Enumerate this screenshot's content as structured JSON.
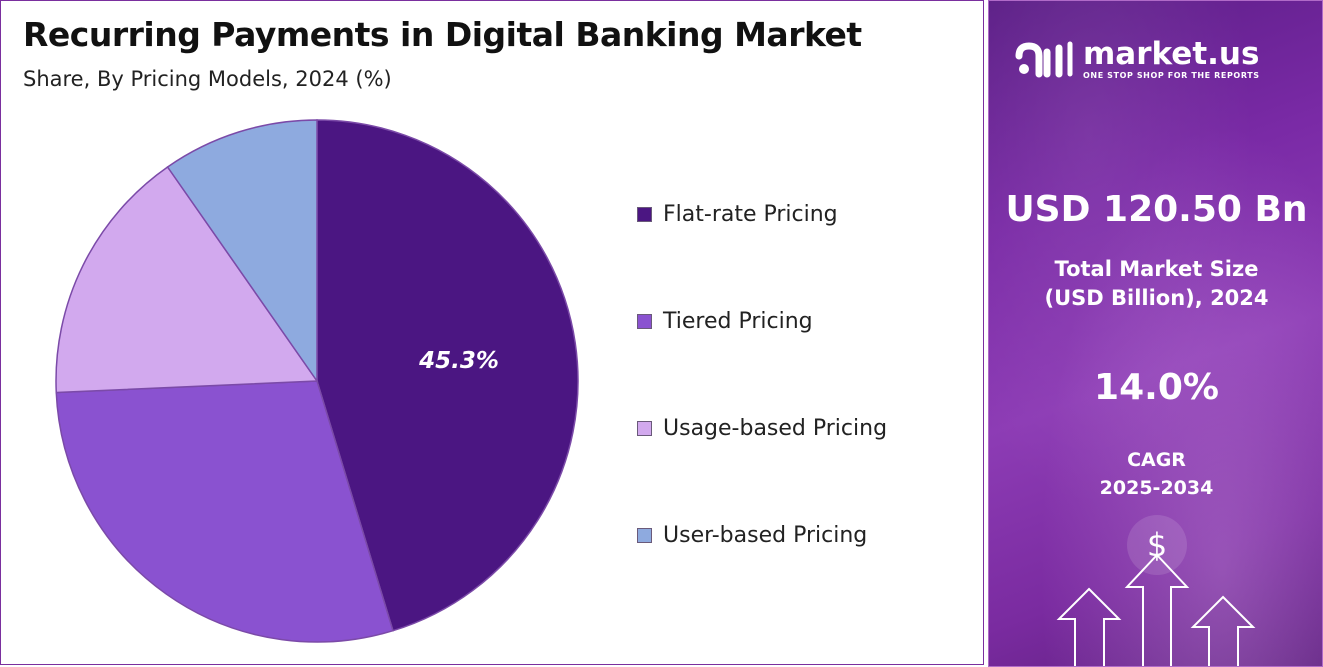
{
  "chart": {
    "title": "Recurring Payments in Digital Banking Market",
    "subtitle": "Share, By Pricing Models, 2024 (%)"
  },
  "chart_data": {
    "type": "pie",
    "categories": [
      "Flat-rate Pricing",
      "Tiered Pricing",
      "Usage-based Pricing",
      "User-based Pricing"
    ],
    "values": [
      45.3,
      29.0,
      16.0,
      9.7
    ],
    "colors": [
      "#4b1682",
      "#8a52d0",
      "#d2a9ee",
      "#8eaadf"
    ],
    "data_labels": [
      "45.3%",
      "",
      "",
      ""
    ],
    "start_angle_deg": 0,
    "direction": "clockwise",
    "legend_position": "right"
  },
  "sidebar": {
    "brand_name": "market.us",
    "brand_tagline": "ONE STOP SHOP FOR THE REPORTS",
    "market_value": "USD 120.50 Bn",
    "market_label_line1": "Total Market Size",
    "market_label_line2": "(USD Billion), 2024",
    "cagr_value": "14.0%",
    "cagr_label_line1": "CAGR",
    "cagr_label_line2": "2025-2034",
    "dollar_symbol": "$"
  }
}
